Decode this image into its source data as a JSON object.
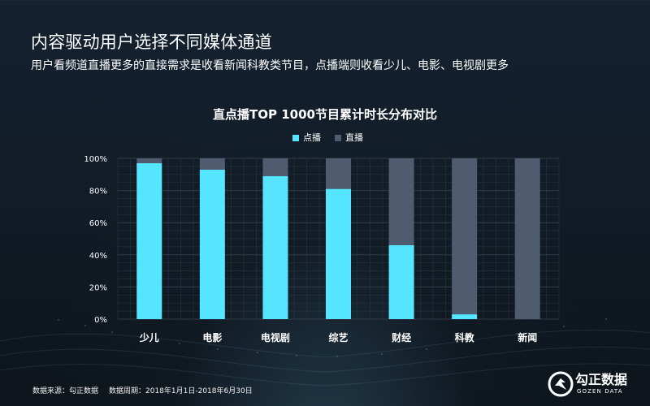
{
  "header": {
    "title": "内容驱动用户选择不同媒体通道",
    "subtitle": "用户看频道直播更多的直接需求是收看新闻科教类节目，点播端则收看少儿、电影、电视剧更多"
  },
  "chart": {
    "title": "直点播TOP 1000节目累计时长分布对比"
  },
  "chart_data": {
    "type": "bar",
    "stacked": true,
    "categories": [
      "少儿",
      "电影",
      "电视剧",
      "综艺",
      "财经",
      "科教",
      "新闻"
    ],
    "series": [
      {
        "name": "点播",
        "values": [
          97,
          93,
          89,
          81,
          46,
          3,
          0
        ]
      },
      {
        "name": "直播",
        "values": [
          3,
          7,
          11,
          19,
          54,
          97,
          100
        ]
      }
    ],
    "title": "直点播TOP 1000节目累计时长分布对比",
    "xlabel": "",
    "ylabel": "",
    "ylim": [
      0,
      100
    ],
    "yticks": [
      "0%",
      "20%",
      "40%",
      "60%",
      "80%",
      "100%"
    ],
    "grid": true,
    "legend": "top-center"
  },
  "colors": {
    "dianbo": "#55E5FF",
    "zhibo": "#4F5C70",
    "grid": "#35404C",
    "text": "#FFFFFF"
  },
  "footer": {
    "source": "数据来源：勾正数据",
    "period": "数据周期：2018年1月1日-2018年6月30日"
  },
  "logo": {
    "text": "勾正数据",
    "subtext": "GOZEN DATA",
    "icon": "gozen-logo-icon"
  }
}
